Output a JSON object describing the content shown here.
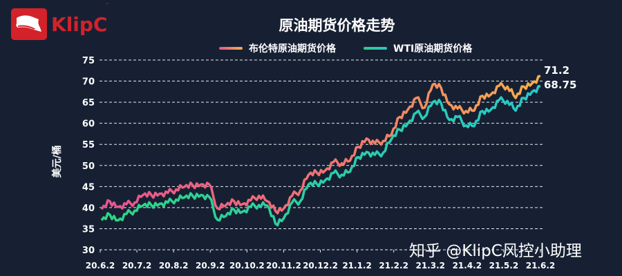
{
  "logo": {
    "text": "KlipC",
    "tm": "™"
  },
  "watermark": "知乎 @KlipC风控小助理",
  "chart_data": {
    "type": "line",
    "title": "原油期货价格走势",
    "xlabel": "",
    "ylabel": "美元/桶",
    "ylim": [
      30,
      75
    ],
    "yticks": [
      30,
      35,
      40,
      45,
      50,
      55,
      60,
      65,
      70,
      75
    ],
    "grid": "horizontal dashed",
    "legend_position": "top",
    "categories": [
      "20.6.2",
      "20.7.2",
      "20.8.2",
      "20.9.2",
      "20.10.2",
      "20.11.2",
      "20.12.2",
      "21.1.2",
      "21.2.2",
      "21.3.2",
      "21.4.2",
      "21.5.2",
      "21.6.2"
    ],
    "x": [
      "20.6.2",
      "20.6.9",
      "20.6.16",
      "20.6.23",
      "20.6.30",
      "20.7.7",
      "20.7.14",
      "20.7.21",
      "20.7.28",
      "20.8.4",
      "20.8.11",
      "20.8.18",
      "20.8.25",
      "20.9.1",
      "20.9.8",
      "20.9.15",
      "20.9.22",
      "20.9.29",
      "20.10.6",
      "20.10.13",
      "20.10.20",
      "20.10.27",
      "20.11.3",
      "20.11.10",
      "20.11.17",
      "20.11.24",
      "20.12.1",
      "20.12.8",
      "20.12.15",
      "20.12.22",
      "20.12.29",
      "21.1.5",
      "21.1.12",
      "21.1.19",
      "21.1.26",
      "21.2.2",
      "21.2.9",
      "21.2.16",
      "21.2.23",
      "21.3.2",
      "21.3.9",
      "21.3.16",
      "21.3.23",
      "21.3.30",
      "21.4.6",
      "21.4.13",
      "21.4.20",
      "21.4.27",
      "21.5.4",
      "21.5.11",
      "21.5.18",
      "21.5.25",
      "21.6.1",
      "21.6.2"
    ],
    "series": [
      {
        "name": "布伦特原油期货价格",
        "color_start": "#e8548f",
        "color_end": "#f5b04a",
        "values": [
          39.6,
          41.5,
          40.2,
          40.8,
          41.2,
          43.0,
          43.0,
          43.3,
          43.5,
          44.3,
          44.9,
          45.3,
          45.5,
          45.5,
          39.8,
          40.5,
          41.5,
          40.8,
          41.7,
          42.8,
          41.5,
          39.2,
          39.8,
          42.8,
          44.0,
          47.8,
          48.3,
          48.8,
          50.8,
          50.5,
          51.1,
          54.4,
          56.4,
          55.2,
          55.8,
          57.3,
          61.5,
          63.3,
          66.0,
          63.7,
          69.2,
          68.4,
          64.5,
          63.5,
          62.9,
          63.0,
          66.5,
          66.8,
          68.9,
          68.7,
          66.0,
          68.7,
          69.5,
          71.2
        ]
      },
      {
        "name": "WTI原油期货价格",
        "color_start": "#2ecc8a",
        "color_end": "#28c9c0",
        "values": [
          37.0,
          38.3,
          37.0,
          38.5,
          39.3,
          40.5,
          40.6,
          40.9,
          41.2,
          41.9,
          42.4,
          42.8,
          43.0,
          42.5,
          37.1,
          38.0,
          39.5,
          39.0,
          40.2,
          40.6,
          40.5,
          36.2,
          37.5,
          41.2,
          41.5,
          45.5,
          45.6,
          46.5,
          48.2,
          47.8,
          48.5,
          52.0,
          53.2,
          52.5,
          53.0,
          56.2,
          58.5,
          60.0,
          62.5,
          61.5,
          65.0,
          64.8,
          60.8,
          61.5,
          59.5,
          59.3,
          62.9,
          63.2,
          65.5,
          65.3,
          63.0,
          66.0,
          67.5,
          68.75
        ]
      }
    ],
    "annotations": [
      {
        "series": "布伦特原油期货价格",
        "label": "71.2",
        "value": 71.2
      },
      {
        "series": "WTI原油期货价格",
        "label": "68.75",
        "value": 68.75
      }
    ]
  }
}
